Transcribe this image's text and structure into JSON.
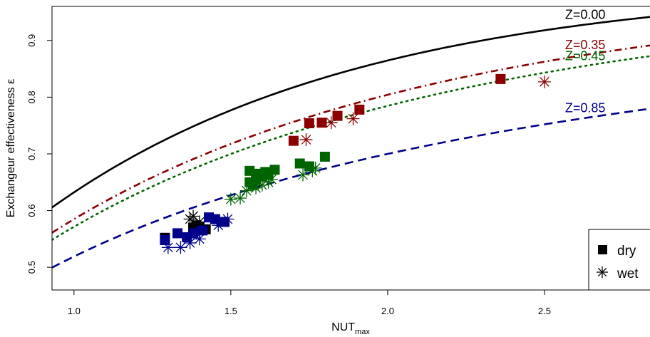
{
  "chart_data": {
    "type": "scatter",
    "title": "",
    "xlabel": "NUT",
    "xlabel_sub": "max",
    "ylabel": "Exchangeur effectiveness ε",
    "xlim": [
      0.93,
      2.85
    ],
    "ylim": [
      0.46,
      0.96
    ],
    "xticks": [
      "1.0",
      "1.5",
      "2.0",
      "2.5"
    ],
    "xtick_values": [
      1.0,
      1.5,
      2.0,
      2.5
    ],
    "yticks": [
      "0.5",
      "0.6",
      "0.7",
      "0.8",
      "0.9"
    ],
    "ytick_values": [
      0.5,
      0.6,
      0.7,
      0.8,
      0.9
    ],
    "grid": false,
    "legend_position": "bottom-right",
    "legend": [
      {
        "marker": "square",
        "label": "dry"
      },
      {
        "marker": "star",
        "label": "wet"
      }
    ],
    "curves": [
      {
        "label": "Z=0.00",
        "z": 0.0,
        "color": "#000000",
        "dash": "solid",
        "label_x": 2.63
      },
      {
        "label": "Z=0.35",
        "z": 0.35,
        "color": "#8b0000",
        "dash": "dashdot",
        "label_x": 2.63
      },
      {
        "label": "Z=0.45",
        "z": 0.45,
        "color": "#006400",
        "dash": "dotted",
        "label_x": 2.63
      },
      {
        "label": "Z=0.85",
        "z": 0.85,
        "color": "#00008b",
        "dash": "dashed",
        "label_x": 2.63
      }
    ],
    "series": [
      {
        "color": "#000000",
        "marker": "square",
        "points": [
          [
            1.29,
            0.552
          ],
          [
            1.38,
            0.57
          ],
          [
            1.4,
            0.571
          ],
          [
            1.42,
            0.567
          ],
          [
            1.39,
            0.574
          ]
        ]
      },
      {
        "color": "#000000",
        "marker": "star",
        "points": [
          [
            1.37,
            0.585
          ],
          [
            1.4,
            0.58
          ],
          [
            1.38,
            0.59
          ]
        ]
      },
      {
        "color": "#00008b",
        "marker": "square",
        "points": [
          [
            1.29,
            0.548
          ],
          [
            1.33,
            0.56
          ],
          [
            1.36,
            0.553
          ],
          [
            1.38,
            0.56
          ],
          [
            1.41,
            0.565
          ],
          [
            1.43,
            0.588
          ],
          [
            1.45,
            0.585
          ],
          [
            1.47,
            0.58
          ],
          [
            1.48,
            0.58
          ]
        ]
      },
      {
        "color": "#00008b",
        "marker": "star",
        "points": [
          [
            1.3,
            0.535
          ],
          [
            1.34,
            0.535
          ],
          [
            1.37,
            0.543
          ],
          [
            1.4,
            0.55
          ],
          [
            1.46,
            0.574
          ],
          [
            1.49,
            0.585
          ],
          [
            1.39,
            0.56
          ]
        ]
      },
      {
        "color": "#006400",
        "marker": "square",
        "points": [
          [
            1.56,
            0.67
          ],
          [
            1.56,
            0.65
          ],
          [
            1.57,
            0.645
          ],
          [
            1.58,
            0.655
          ],
          [
            1.59,
            0.665
          ],
          [
            1.6,
            0.66
          ],
          [
            1.61,
            0.668
          ],
          [
            1.62,
            0.663
          ],
          [
            1.64,
            0.672
          ],
          [
            1.72,
            0.683
          ],
          [
            1.75,
            0.678
          ],
          [
            1.8,
            0.695
          ]
        ]
      },
      {
        "color": "#006400",
        "marker": "star",
        "points": [
          [
            1.5,
            0.62
          ],
          [
            1.53,
            0.622
          ],
          [
            1.55,
            0.635
          ],
          [
            1.58,
            0.64
          ],
          [
            1.6,
            0.645
          ],
          [
            1.62,
            0.65
          ],
          [
            1.63,
            0.655
          ],
          [
            1.73,
            0.663
          ],
          [
            1.76,
            0.67
          ],
          [
            1.77,
            0.675
          ]
        ]
      },
      {
        "color": "#8b0000",
        "marker": "square",
        "points": [
          [
            1.7,
            0.723
          ],
          [
            1.75,
            0.754
          ],
          [
            1.79,
            0.755
          ],
          [
            1.84,
            0.767
          ],
          [
            1.91,
            0.778
          ],
          [
            2.36,
            0.832
          ]
        ]
      },
      {
        "color": "#8b0000",
        "marker": "star",
        "points": [
          [
            1.74,
            0.725
          ],
          [
            1.82,
            0.755
          ],
          [
            1.89,
            0.762
          ],
          [
            2.5,
            0.827
          ]
        ]
      }
    ]
  }
}
